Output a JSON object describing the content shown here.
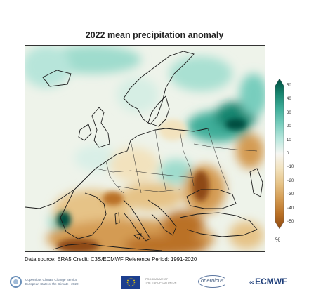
{
  "title": "2022 mean precipitation anomaly",
  "colorbar": {
    "ticks": [
      "50",
      "40",
      "30",
      "20",
      "10",
      "0",
      "−10",
      "−20",
      "−30",
      "−40",
      "−50"
    ],
    "unit": "%",
    "colors": [
      "#004d40",
      "#17856f",
      "#3fae9a",
      "#78cdbd",
      "#b8e7dd",
      "#f6f6f2",
      "#f2e2bd",
      "#e6c387",
      "#d49b52",
      "#ba7126",
      "#8e4a12"
    ]
  },
  "source_text": "Data source: ERA5  Credit: C3S/ECMWF  Reference Period: 1991-2020",
  "footer": {
    "ccs_line1": "Copernicus Climate Change Service",
    "ccs_line2": "European State of the Climate | 2022",
    "eu_line1": "PROGRAMME OF",
    "eu_line2": "THE EUROPEAN UNION",
    "copernicus": "opernicus",
    "ecmwf": "ECMWF"
  }
}
